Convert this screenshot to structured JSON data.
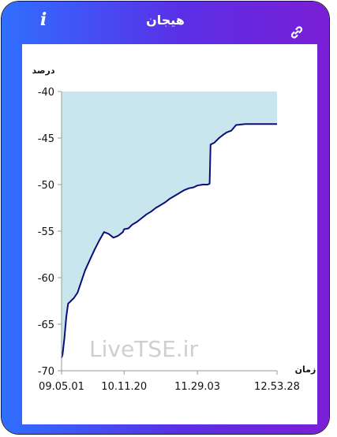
{
  "header": {
    "title": "هیجان",
    "info_icon": "info-icon",
    "link_icon": "link-icon"
  },
  "watermark": "LiveTSE.ir",
  "colors": {
    "frame_start": "#2f6fff",
    "frame_end": "#7a1fd6",
    "area_fill": "#c9e6ee",
    "line": "#0d0d7a"
  },
  "chart_data": {
    "type": "area",
    "ylabel": "درصد",
    "xlabel": "زمان",
    "ylim": [
      -70,
      -40
    ],
    "yticks": [
      "-40",
      "-45",
      "-50",
      "-55",
      "-60",
      "-65",
      "-70"
    ],
    "xticks": [
      "09.05.01",
      "10.11.20",
      "11.29.03",
      "12.53.28"
    ],
    "xlim": [
      "09.05.01",
      "12.53.28"
    ],
    "grid": false,
    "series": [
      {
        "x": [
          "09.05.01",
          "09.06.00",
          "09.08.00",
          "09.10.00",
          "09.12.00",
          "09.15.00",
          "09.18.00",
          "09.22.00",
          "09.26.00",
          "09.30.00",
          "09.35.00",
          "09.40.00",
          "09.45.00",
          "09.50.00",
          "09.55.00",
          "10.00.00",
          "10.05.00",
          "10.10.00",
          "10.11.20",
          "10.16.00",
          "10.20.00",
          "10.25.00",
          "10.30.00",
          "10.35.00",
          "10.40.00",
          "10.45.00",
          "10.50.00",
          "10.55.00",
          "11.00.00",
          "11.05.00",
          "11.10.00",
          "11.15.00",
          "11.20.00",
          "11.25.00",
          "11.29.03",
          "11.35.00",
          "11.40.00",
          "11.42.00",
          "11.43.00",
          "11.47.00",
          "11.52.00",
          "11.57.00",
          "12.00.00",
          "12.05.00",
          "12.10.00",
          "12.20.00",
          "12.30.00",
          "12.40.00",
          "12.53.28"
        ],
        "values": [
          -68.6,
          -68.3,
          -66.5,
          -64.2,
          -62.8,
          -62.5,
          -62.2,
          -61.6,
          -60.4,
          -59.2,
          -58.1,
          -57.0,
          -56.0,
          -55.1,
          -55.3,
          -55.7,
          -55.5,
          -55.1,
          -54.8,
          -54.7,
          -54.3,
          -54.0,
          -53.6,
          -53.2,
          -52.9,
          -52.5,
          -52.2,
          -51.9,
          -51.5,
          -51.2,
          -50.9,
          -50.6,
          -50.4,
          -50.3,
          -50.1,
          -50.0,
          -50.0,
          -49.9,
          -45.7,
          -45.5,
          -45.0,
          -44.6,
          -44.4,
          -44.2,
          -43.6,
          -43.5,
          -43.5,
          -43.5,
          -43.5
        ]
      }
    ]
  }
}
